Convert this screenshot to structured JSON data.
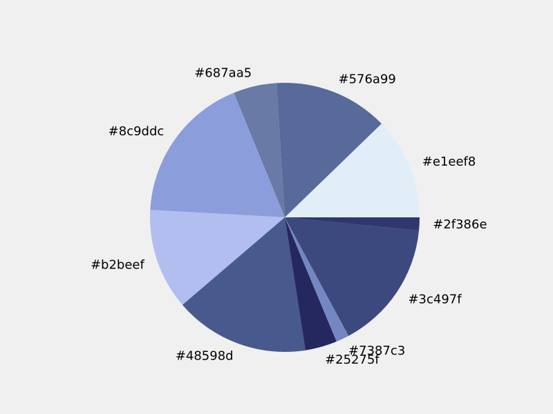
{
  "chart_data": {
    "type": "pie",
    "title": "",
    "legend": "none",
    "start_angle_deg": 0,
    "direction": "counterclockwise",
    "background": "#f0f0f0",
    "slices": [
      {
        "label": "#e1eef8",
        "value": 12.5,
        "color": "#e1eef8"
      },
      {
        "label": "#576a99",
        "value": 14.0,
        "color": "#576a99"
      },
      {
        "label": "#687aa5",
        "value": 5.3,
        "color": "#687aa5"
      },
      {
        "label": "#8c9ddc",
        "value": 18.3,
        "color": "#8c9ddc"
      },
      {
        "label": "#b2beef",
        "value": 12.4,
        "color": "#b2beef"
      },
      {
        "label": "#48598d",
        "value": 16.5,
        "color": "#48598d"
      },
      {
        "label": "#25275f",
        "value": 3.9,
        "color": "#25275f"
      },
      {
        "label": "#7387c3",
        "value": 1.6,
        "color": "#7387c3"
      },
      {
        "label": "#3c497f",
        "value": 15.9,
        "color": "#3c497f"
      },
      {
        "label": "#2f386e",
        "value": 1.6,
        "color": "#2f386e"
      }
    ]
  }
}
